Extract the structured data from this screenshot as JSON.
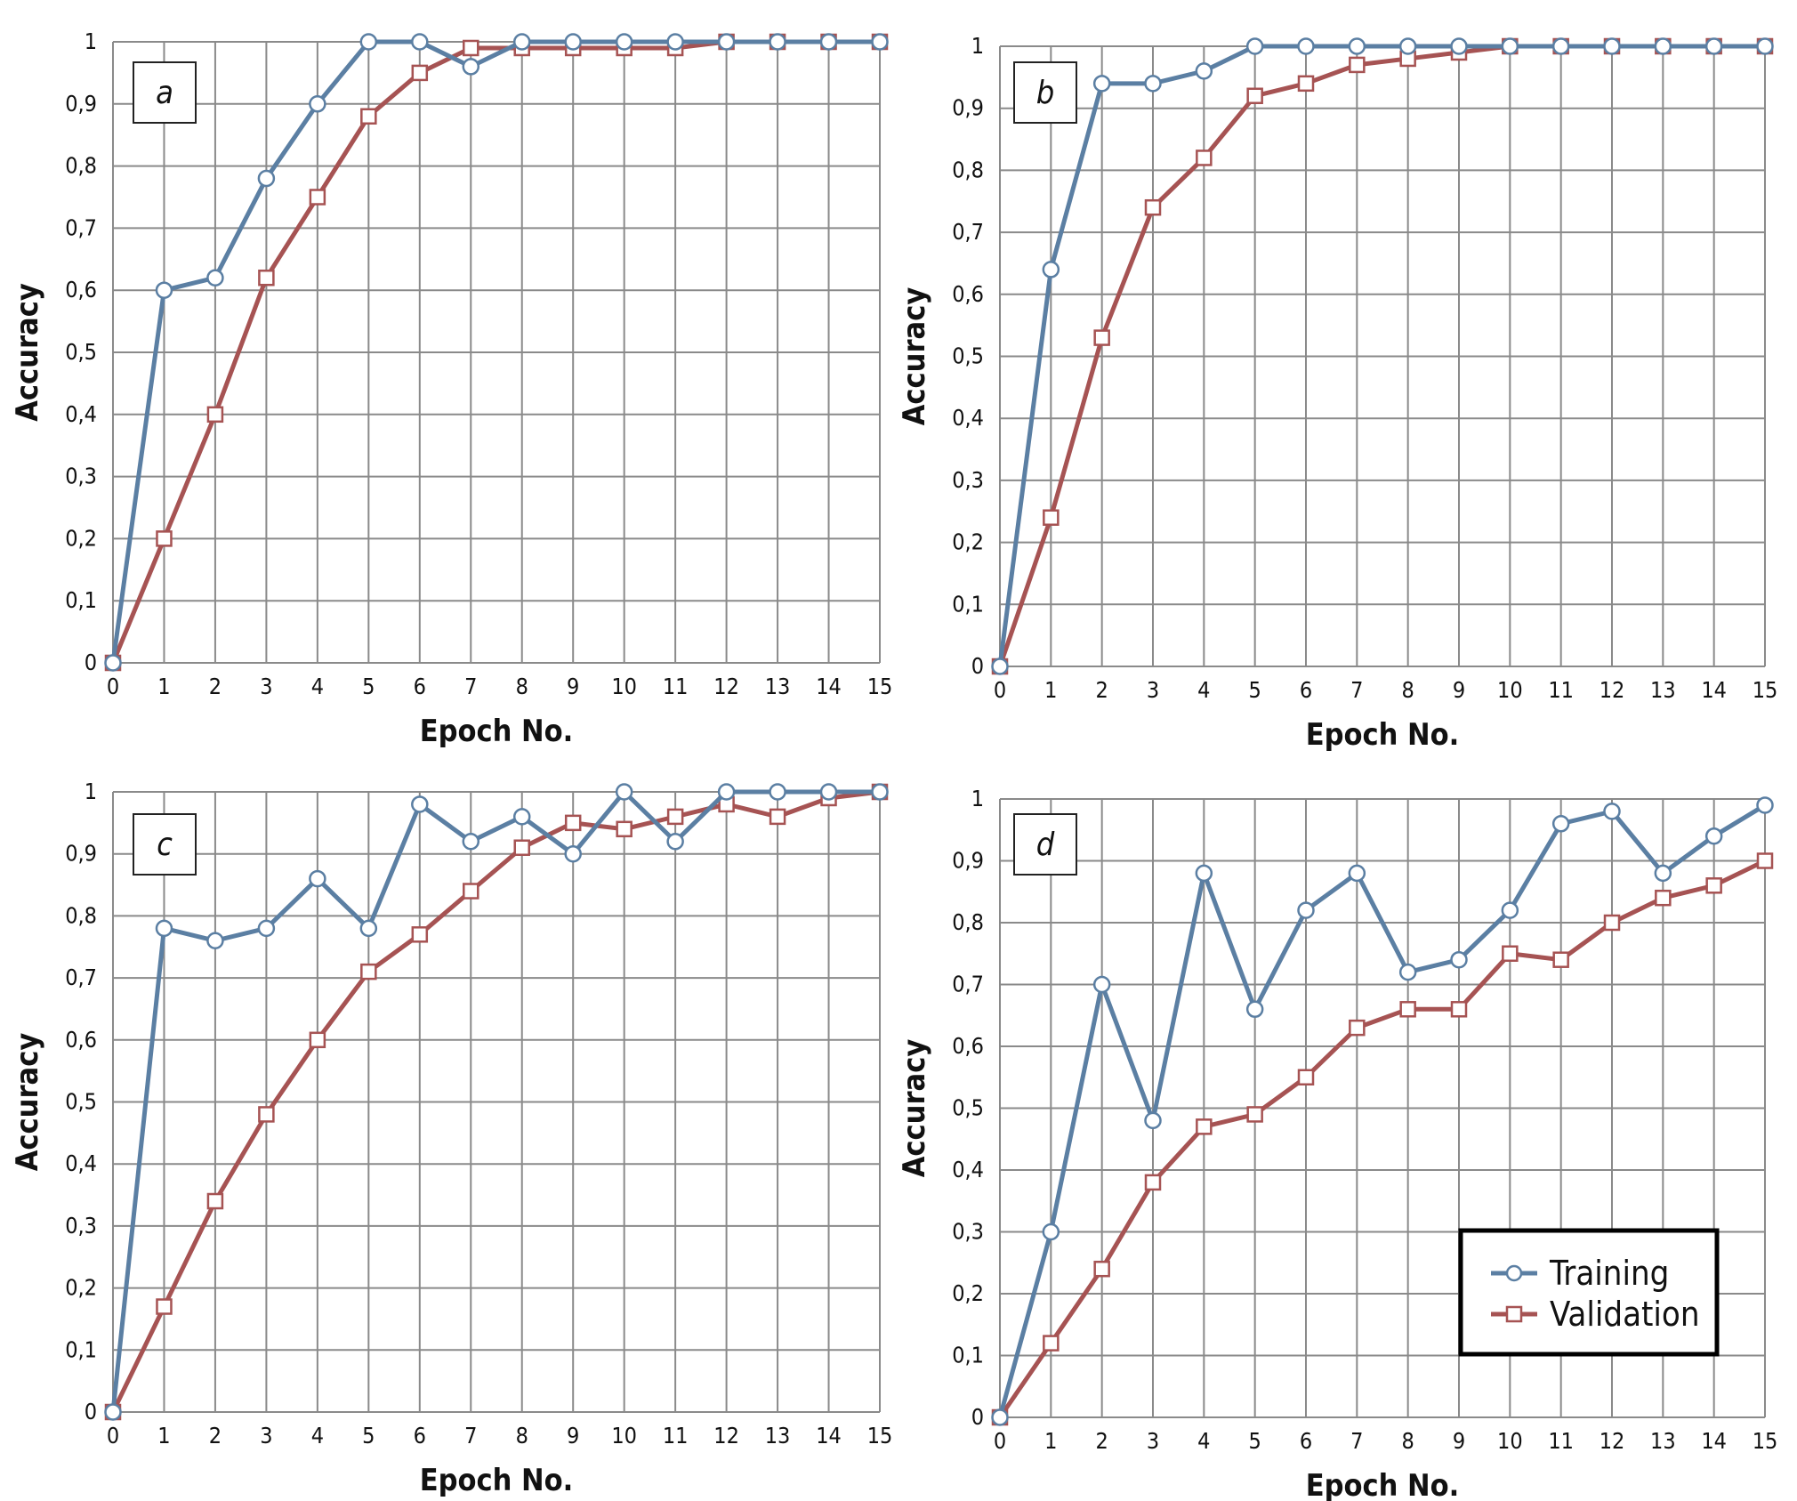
{
  "colors": {
    "training": "#5b7fa3",
    "validation": "#a65353",
    "grid": "#8a8a8a",
    "marker_fill": "#ffffff"
  },
  "legend": {
    "placement": "bottom-right of panel d",
    "training": "Training",
    "validation": "Validation"
  },
  "chart_data": [
    {
      "panel": "a",
      "type": "line",
      "xlabel": "Epoch No.",
      "ylabel": "Accuracy",
      "x": [
        0,
        1,
        2,
        3,
        4,
        5,
        6,
        7,
        8,
        9,
        10,
        11,
        12,
        13,
        14,
        15
      ],
      "xlim": [
        0,
        15
      ],
      "ylim": [
        0,
        1
      ],
      "grid": true,
      "x_ticks": [
        "0",
        "1",
        "2",
        "3",
        "4",
        "5",
        "6",
        "7",
        "8",
        "9",
        "10",
        "11",
        "12",
        "13",
        "14",
        "15"
      ],
      "y_ticks": [
        "0",
        "0,1",
        "0,2",
        "0,3",
        "0,4",
        "0,5",
        "0,6",
        "0,7",
        "0,8",
        "0,9",
        "1"
      ],
      "series": [
        {
          "name": "Training",
          "marker": "circle",
          "values": [
            0,
            0.6,
            0.62,
            0.78,
            0.9,
            1.0,
            1.0,
            0.96,
            1.0,
            1.0,
            1.0,
            1.0,
            1.0,
            1.0,
            1.0,
            1.0
          ]
        },
        {
          "name": "Validation",
          "marker": "square",
          "values": [
            0,
            0.2,
            0.4,
            0.62,
            0.75,
            0.88,
            0.95,
            0.99,
            0.99,
            0.99,
            0.99,
            0.99,
            1.0,
            1.0,
            1.0,
            1.0
          ]
        }
      ]
    },
    {
      "panel": "b",
      "type": "line",
      "xlabel": "Epoch No.",
      "ylabel": "Accuracy",
      "x": [
        0,
        1,
        2,
        3,
        4,
        5,
        6,
        7,
        8,
        9,
        10,
        11,
        12,
        13,
        14,
        15
      ],
      "xlim": [
        0,
        15
      ],
      "ylim": [
        0,
        1
      ],
      "grid": true,
      "x_ticks": [
        "0",
        "1",
        "2",
        "3",
        "4",
        "5",
        "6",
        "7",
        "8",
        "9",
        "10",
        "11",
        "12",
        "13",
        "14",
        "15"
      ],
      "y_ticks": [
        "0",
        "0,1",
        "0,2",
        "0,3",
        "0,4",
        "0,5",
        "0,6",
        "0,7",
        "0,8",
        "0,9",
        "1"
      ],
      "series": [
        {
          "name": "Training",
          "marker": "circle",
          "values": [
            0,
            0.64,
            0.94,
            0.94,
            0.96,
            1.0,
            1.0,
            1.0,
            1.0,
            1.0,
            1.0,
            1.0,
            1.0,
            1.0,
            1.0,
            1.0
          ]
        },
        {
          "name": "Validation",
          "marker": "square",
          "values": [
            0,
            0.24,
            0.53,
            0.74,
            0.82,
            0.92,
            0.94,
            0.97,
            0.98,
            0.99,
            1.0,
            1.0,
            1.0,
            1.0,
            1.0,
            1.0
          ]
        }
      ]
    },
    {
      "panel": "c",
      "type": "line",
      "xlabel": "Epoch No.",
      "ylabel": "Accuracy",
      "x": [
        0,
        1,
        2,
        3,
        4,
        5,
        6,
        7,
        8,
        9,
        10,
        11,
        12,
        13,
        14,
        15
      ],
      "xlim": [
        0,
        15
      ],
      "ylim": [
        0,
        1
      ],
      "grid": true,
      "x_ticks": [
        "0",
        "1",
        "2",
        "3",
        "4",
        "5",
        "6",
        "7",
        "8",
        "9",
        "10",
        "11",
        "12",
        "13",
        "14",
        "15"
      ],
      "y_ticks": [
        "0",
        "0,1",
        "0,2",
        "0,3",
        "0,4",
        "0,5",
        "0,6",
        "0,7",
        "0,8",
        "0,9",
        "1"
      ],
      "series": [
        {
          "name": "Training",
          "marker": "circle",
          "values": [
            0,
            0.78,
            0.76,
            0.78,
            0.86,
            0.78,
            0.98,
            0.92,
            0.96,
            0.9,
            1.0,
            0.92,
            1.0,
            1.0,
            1.0,
            1.0
          ]
        },
        {
          "name": "Validation",
          "marker": "square",
          "values": [
            0,
            0.17,
            0.34,
            0.48,
            0.6,
            0.71,
            0.77,
            0.84,
            0.91,
            0.95,
            0.94,
            0.96,
            0.98,
            0.96,
            0.99,
            1.0
          ]
        }
      ]
    },
    {
      "panel": "d",
      "type": "line",
      "xlabel": "Epoch No.",
      "ylabel": "Accuracy",
      "x": [
        0,
        1,
        2,
        3,
        4,
        5,
        6,
        7,
        8,
        9,
        10,
        11,
        12,
        13,
        14,
        15
      ],
      "xlim": [
        0,
        15
      ],
      "ylim": [
        0,
        1
      ],
      "grid": true,
      "x_ticks": [
        "0",
        "1",
        "2",
        "3",
        "4",
        "5",
        "6",
        "7",
        "8",
        "9",
        "10",
        "11",
        "12",
        "13",
        "14",
        "15"
      ],
      "y_ticks": [
        "0",
        "0,1",
        "0,2",
        "0,3",
        "0,4",
        "0,5",
        "0,6",
        "0,7",
        "0,8",
        "0,9",
        "1"
      ],
      "series": [
        {
          "name": "Training",
          "marker": "circle",
          "values": [
            0,
            0.3,
            0.7,
            0.48,
            0.88,
            0.66,
            0.82,
            0.88,
            0.72,
            0.74,
            0.82,
            0.96,
            0.98,
            0.88,
            0.94,
            0.99
          ]
        },
        {
          "name": "Validation",
          "marker": "square",
          "values": [
            0,
            0.12,
            0.24,
            0.38,
            0.47,
            0.49,
            0.55,
            0.63,
            0.66,
            0.66,
            0.75,
            0.74,
            0.8,
            0.84,
            0.86,
            0.9
          ]
        }
      ]
    }
  ]
}
